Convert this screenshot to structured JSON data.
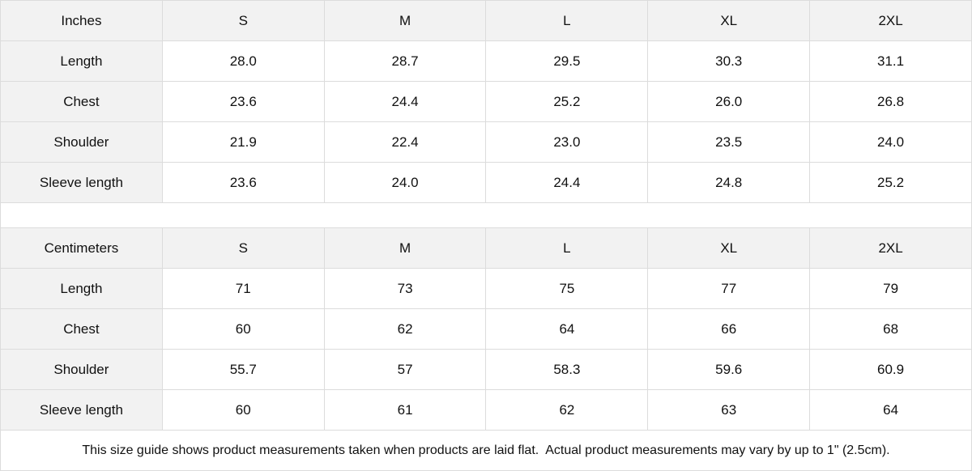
{
  "inches": {
    "header": [
      "Inches",
      "S",
      "M",
      "L",
      "XL",
      "2XL"
    ],
    "rows": [
      [
        "Length",
        "28.0",
        "28.7",
        "29.5",
        "30.3",
        "31.1"
      ],
      [
        "Chest",
        "23.6",
        "24.4",
        "25.2",
        "26.0",
        "26.8"
      ],
      [
        "Shoulder",
        "21.9",
        "22.4",
        "23.0",
        "23.5",
        "24.0"
      ],
      [
        "Sleeve length",
        "23.6",
        "24.0",
        "24.4",
        "24.8",
        "25.2"
      ]
    ]
  },
  "centimeters": {
    "header": [
      "Centimeters",
      "S",
      "M",
      "L",
      "XL",
      "2XL"
    ],
    "rows": [
      [
        "Length",
        "71",
        "73",
        "75",
        "77",
        "79"
      ],
      [
        "Chest",
        "60",
        "62",
        "64",
        "66",
        "68"
      ],
      [
        "Shoulder",
        "55.7",
        "57",
        "58.3",
        "59.6",
        "60.9"
      ],
      [
        "Sleeve length",
        "60",
        "61",
        "62",
        "63",
        "64"
      ]
    ]
  },
  "note": "This size guide shows product measurements taken when products are laid flat.  Actual product measurements may vary by up to 1\" (2.5cm)."
}
